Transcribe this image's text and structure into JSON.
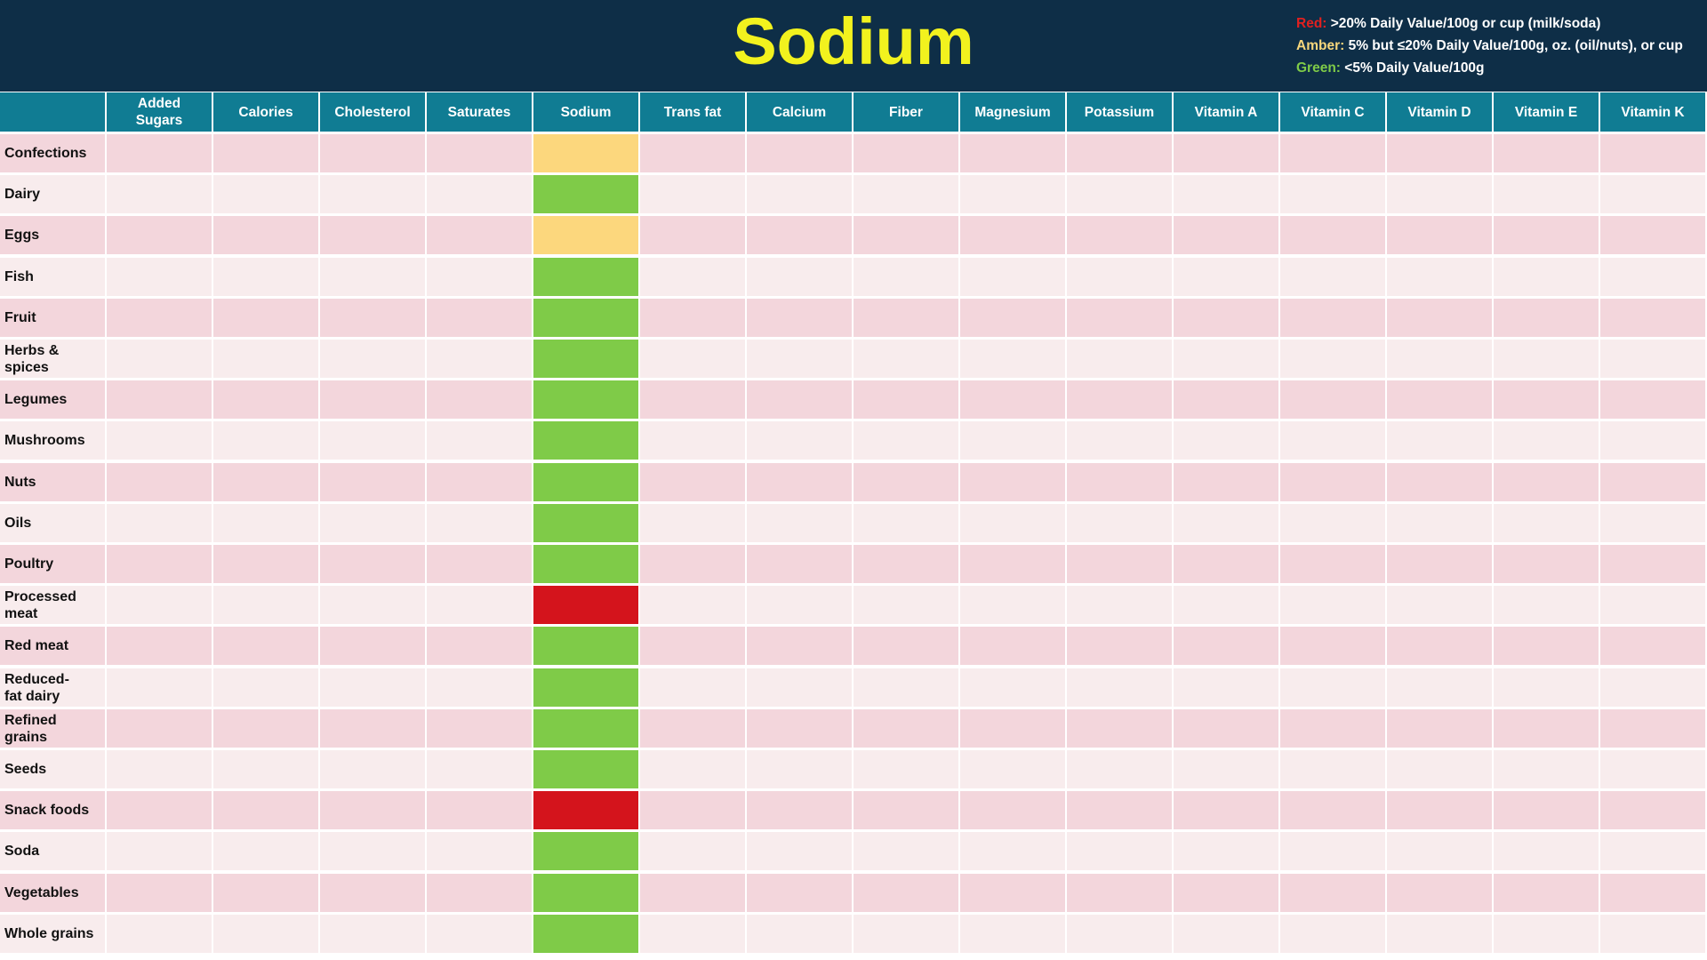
{
  "header": {
    "title": "Sodium",
    "legend": [
      {
        "key": "Red:",
        "text": " >20% Daily Value/100g or cup (milk/soda)",
        "color": "#e02020"
      },
      {
        "key": "Amber:",
        "text": " 5% but ≤20% Daily Value/100g, oz. (oil/nuts), or cup",
        "color": "#f7d77c"
      },
      {
        "key": "Green:",
        "text": " <5% Daily Value/100g",
        "color": "#7fcb48"
      }
    ]
  },
  "colors": {
    "header_bg": "#0e2e47",
    "title": "#f2f21e",
    "column_header_bg": "#107c93",
    "row_odd_bg": "#f3d6dc",
    "row_even_bg": "#f8eced",
    "red": "#d4141c",
    "amber": "#fcd77d",
    "green": "#7fcb48"
  },
  "chart_data": {
    "type": "table",
    "title": "Sodium",
    "columns": [
      "Added Sugars",
      "Calories",
      "Cholesterol",
      "Saturates",
      "Sodium",
      "Trans fat",
      "Calcium",
      "Fiber",
      "Magnesium",
      "Potassium",
      "Vitamin A",
      "Vitamin C",
      "Vitamin D",
      "Vitamin E",
      "Vitamin K"
    ],
    "rows": [
      "Confections",
      "Dairy",
      "Eggs",
      "Fish",
      "Fruit",
      "Herbs & spices",
      "Legumes",
      "Mushrooms",
      "Nuts",
      "Oils",
      "Poultry",
      "Processed meat",
      "Red meat",
      "Reduced-fat dairy",
      "Refined grains",
      "Seeds",
      "Snack foods",
      "Soda",
      "Vegetables",
      "Whole grains"
    ],
    "highlighted_column": "Sodium",
    "ratings": [
      "amber",
      "green",
      "amber",
      "green",
      "green",
      "green",
      "green",
      "green",
      "green",
      "green",
      "green",
      "red",
      "green",
      "green",
      "green",
      "green",
      "red",
      "green",
      "green",
      "green"
    ]
  }
}
